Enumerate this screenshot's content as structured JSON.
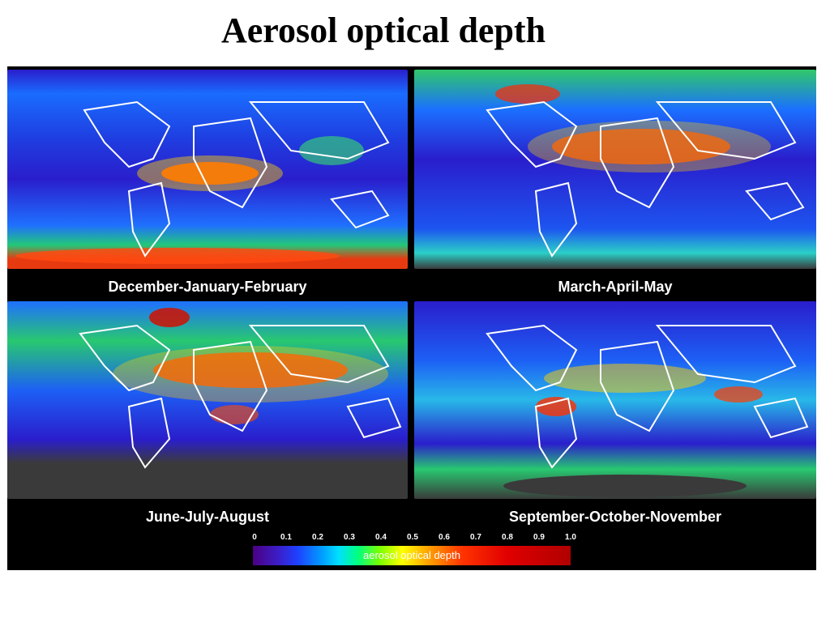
{
  "title": "Aerosol optical depth",
  "panels": [
    {
      "caption": "December-January-February"
    },
    {
      "caption": "March-April-May"
    },
    {
      "caption": "June-July-August"
    },
    {
      "caption": "September-October-November"
    }
  ],
  "colorbar": {
    "label": "aerosol optical depth",
    "ticks": [
      "0",
      "0.1",
      "0.2",
      "0.3",
      "0.4",
      "0.5",
      "0.6",
      "0.7",
      "0.8",
      "0.9",
      "1.0"
    ],
    "range": [
      0,
      1.0
    ],
    "colors": [
      "#4b0082",
      "#1e40ff",
      "#00e0ff",
      "#00ff80",
      "#ffff00",
      "#ff9900",
      "#e00000"
    ]
  },
  "colors": {
    "ocean_low": "#2a1ecc",
    "land_nodata": "#3a3a3a",
    "coastline": "#ffffff"
  }
}
